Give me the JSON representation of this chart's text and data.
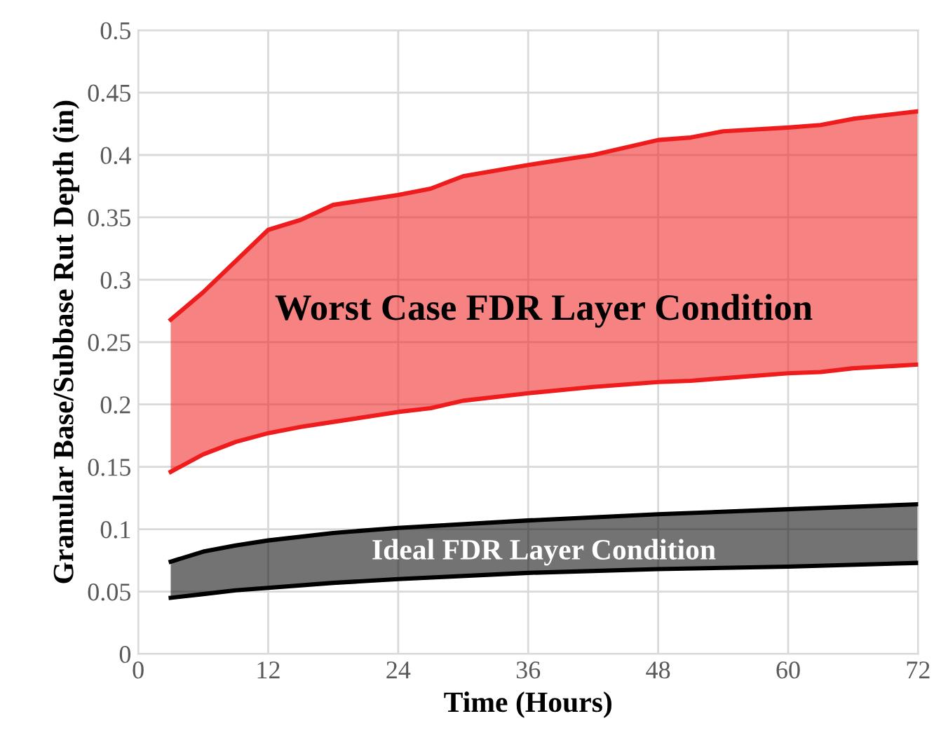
{
  "chart_data": {
    "type": "line",
    "xlabel": "Time (Hours)",
    "ylabel": "Granular Base/Subbase Rut Depth (in)",
    "xlim": [
      0,
      72
    ],
    "xticks": [
      0,
      12,
      24,
      36,
      48,
      60,
      72
    ],
    "ylim": [
      0,
      0.5
    ],
    "yticks": [
      0,
      0.05,
      0.1,
      0.15,
      0.2,
      0.25,
      0.3,
      0.35,
      0.4,
      0.45,
      0.5
    ],
    "grid": true,
    "series": [
      {
        "color": "#ee1c1c",
        "x": [
          3,
          6,
          9,
          12,
          15,
          18,
          24,
          27,
          30,
          36,
          42,
          48,
          51,
          54,
          60,
          63,
          66,
          72
        ],
        "values": [
          0.268,
          0.29,
          0.315,
          0.34,
          0.348,
          0.36,
          0.368,
          0.373,
          0.383,
          0.392,
          0.4,
          0.412,
          0.414,
          0.419,
          0.422,
          0.424,
          0.429,
          0.435
        ],
        "upper": [
          0.268,
          0.29,
          0.315,
          0.34,
          0.348,
          0.36,
          0.368,
          0.373,
          0.383,
          0.392,
          0.4,
          0.412,
          0.414,
          0.419,
          0.422,
          0.424,
          0.429,
          0.435
        ],
        "lower": [
          0.146,
          0.16,
          0.17,
          0.177,
          0.182,
          0.186,
          0.194,
          0.197,
          0.203,
          0.209,
          0.214,
          0.218,
          0.219,
          0.221,
          0.225,
          0.226,
          0.229,
          0.232
        ]
      },
      {
        "color": "#ee1c1c",
        "x": [
          3,
          6,
          9,
          12,
          15,
          18,
          24,
          27,
          30,
          36,
          42,
          48,
          51,
          54,
          60,
          63,
          66,
          72
        ],
        "values": [
          0.146,
          0.16,
          0.17,
          0.177,
          0.182,
          0.186,
          0.194,
          0.197,
          0.203,
          0.209,
          0.214,
          0.218,
          0.219,
          0.221,
          0.225,
          0.226,
          0.229,
          0.232
        ]
      },
      {
        "color": "#000000",
        "x": [
          3,
          6,
          9,
          12,
          18,
          24,
          36,
          48,
          60,
          72
        ],
        "values": [
          0.074,
          0.082,
          0.087,
          0.091,
          0.097,
          0.101,
          0.107,
          0.112,
          0.116,
          0.12
        ],
        "upper": [
          0.074,
          0.082,
          0.087,
          0.091,
          0.097,
          0.101,
          0.107,
          0.112,
          0.116,
          0.12
        ],
        "lower": [
          0.045,
          0.048,
          0.051,
          0.053,
          0.057,
          0.06,
          0.065,
          0.068,
          0.07,
          0.073
        ]
      },
      {
        "color": "#000000",
        "x": [
          3,
          6,
          9,
          12,
          18,
          24,
          36,
          48,
          60,
          72
        ],
        "values": [
          0.045,
          0.048,
          0.051,
          0.053,
          0.057,
          0.06,
          0.065,
          0.068,
          0.07,
          0.073
        ]
      }
    ],
    "annotations": [
      "Worst Case FDR Layer Condition",
      "Ideal FDR Layer Condition"
    ]
  }
}
